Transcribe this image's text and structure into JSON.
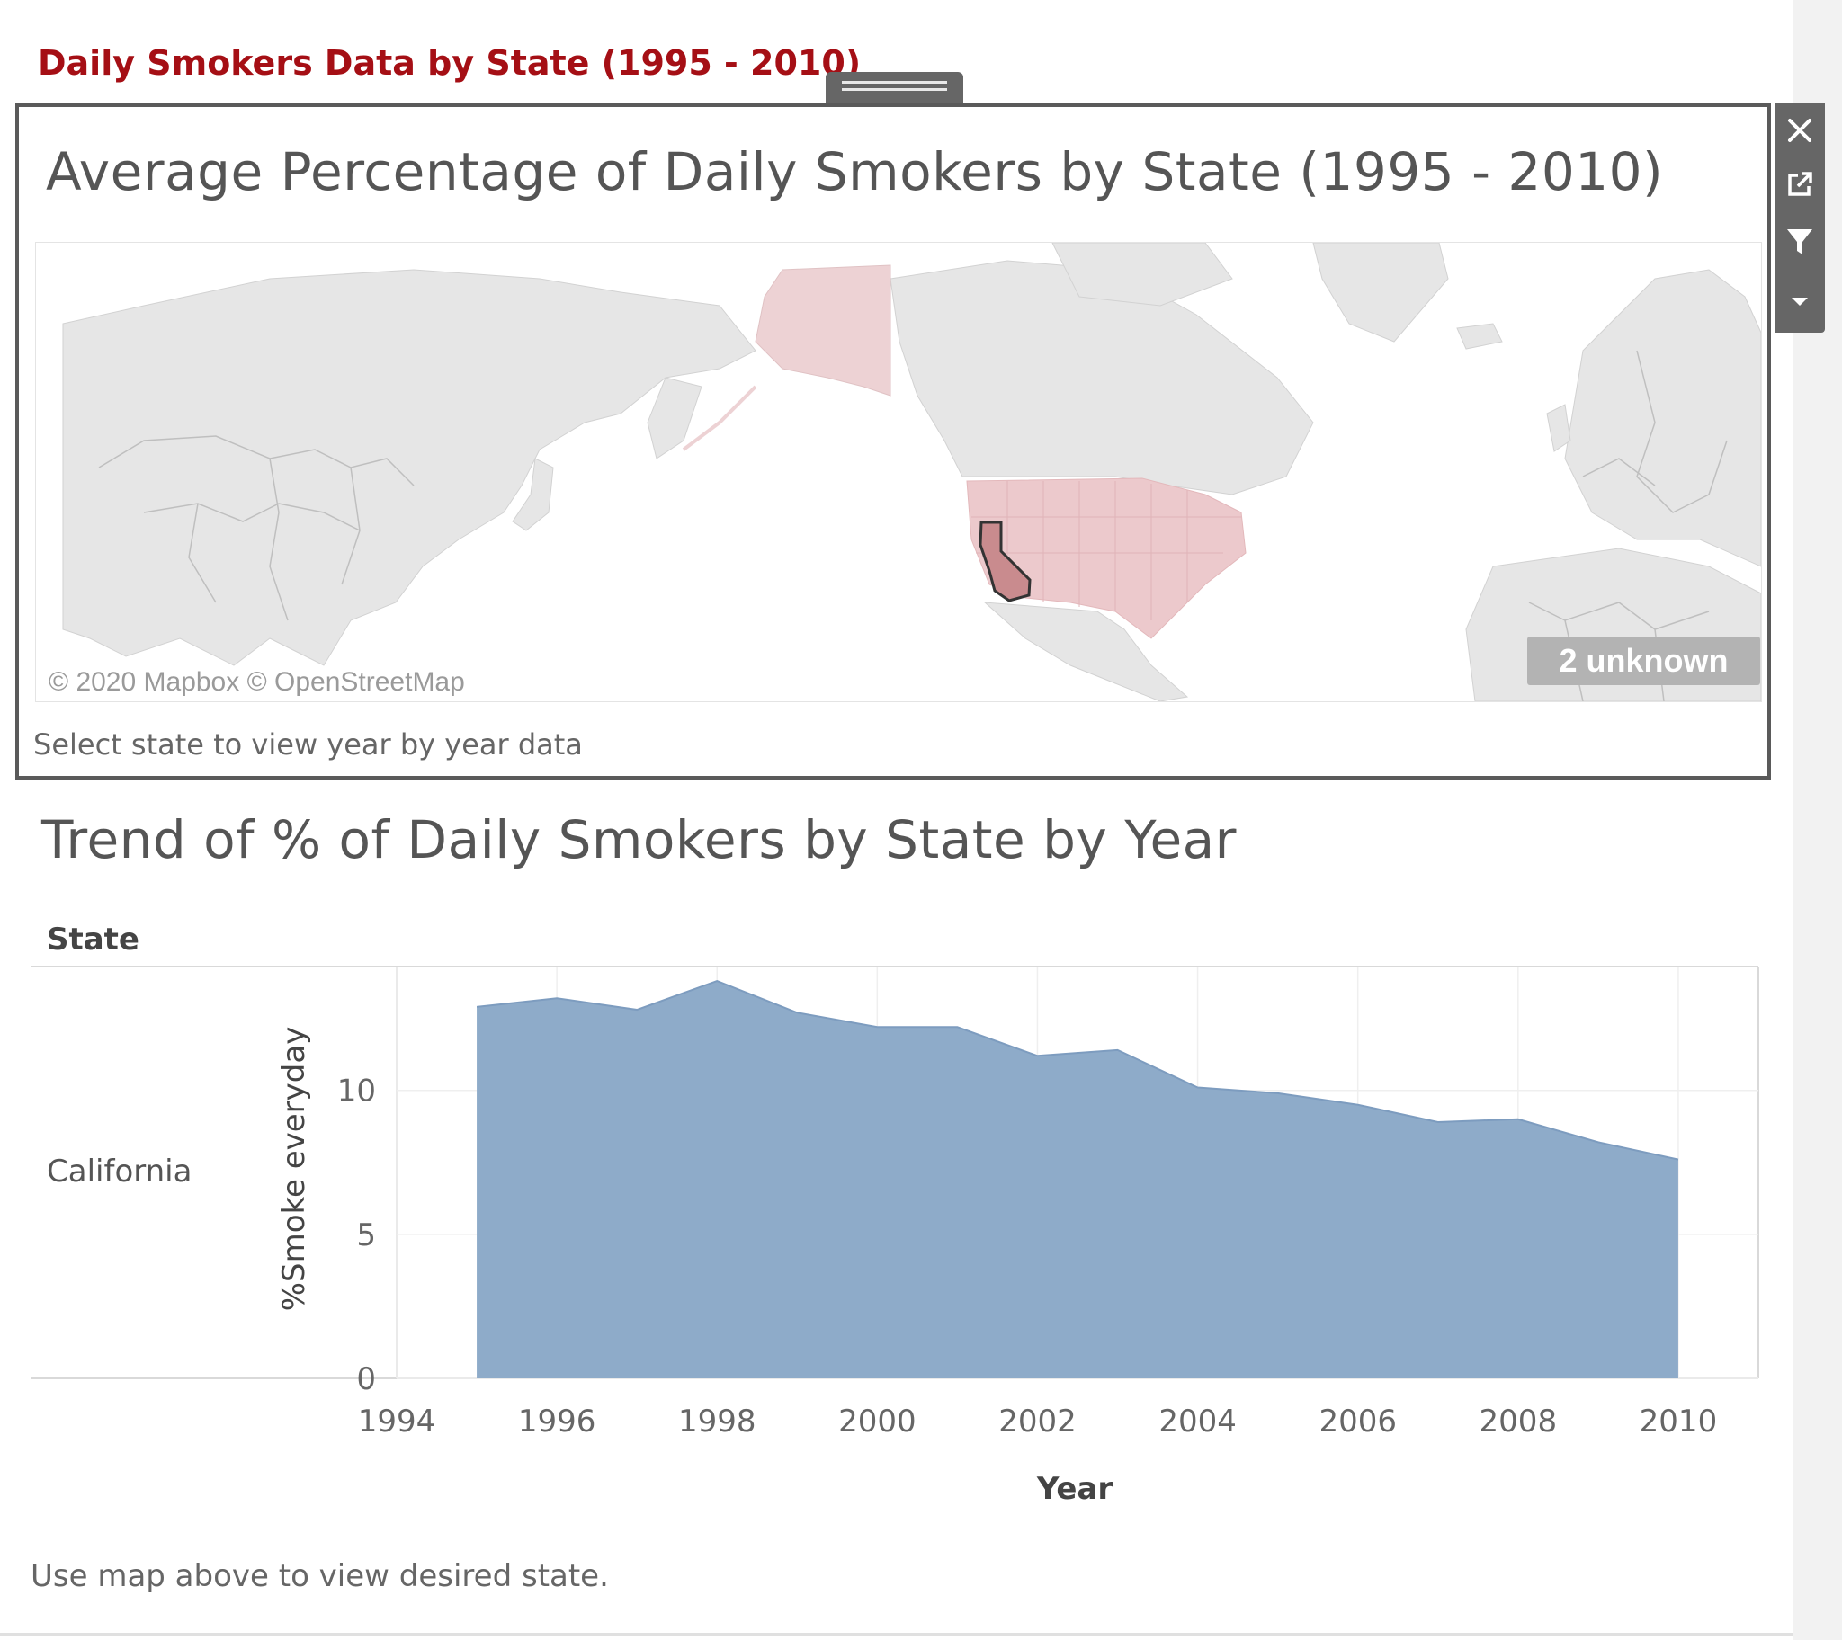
{
  "dashboard": {
    "title": "Daily Smokers Data by State (1995 - 2010)"
  },
  "map_panel": {
    "title": "Average Percentage of Daily Smokers by State (1995 - 2010)",
    "attribution": "© 2020 Mapbox © OpenStreetMap",
    "unknown_badge": "2 unknown",
    "caption": "Select state to view year by year data",
    "selected_state": "California",
    "colors": {
      "land": "#e6e6e6",
      "borders": "#c4c4c4",
      "us_fill": "#ecc9cc",
      "selected_fill": "#c98b8e",
      "selected_stroke": "#333333"
    }
  },
  "toolbar": {
    "icons": [
      "close-icon",
      "external-link-icon",
      "filter-icon",
      "dropdown-arrow-icon"
    ]
  },
  "trend_panel": {
    "title": "Trend of % of Daily Smokers by State by Year",
    "row_header": "State",
    "row_label": "California",
    "footer": "Use map above to view desired state."
  },
  "chart_data": {
    "type": "area",
    "x": [
      1995,
      1996,
      1997,
      1998,
      1999,
      2000,
      2001,
      2002,
      2003,
      2004,
      2005,
      2006,
      2007,
      2008,
      2009,
      2010
    ],
    "series": [
      {
        "values": [
          12.9,
          13.2,
          12.8,
          13.8,
          12.7,
          12.2,
          12.2,
          11.2,
          11.4,
          10.1,
          9.9,
          9.5,
          8.9,
          9.0,
          8.2,
          7.6
        ]
      }
    ],
    "xlabel": "Year",
    "ylabel": "%Smoke everyday",
    "x_ticks": [
      "1994",
      "1996",
      "1998",
      "2000",
      "2002",
      "2004",
      "2006",
      "2008",
      "2010"
    ],
    "y_ticks": [
      "0",
      "5",
      "10"
    ],
    "xlim": [
      1994,
      2011
    ],
    "ylim": [
      0,
      14.3
    ],
    "grid": true,
    "fill_color": "#8eabc9",
    "line_color": "#7d9cbf"
  }
}
